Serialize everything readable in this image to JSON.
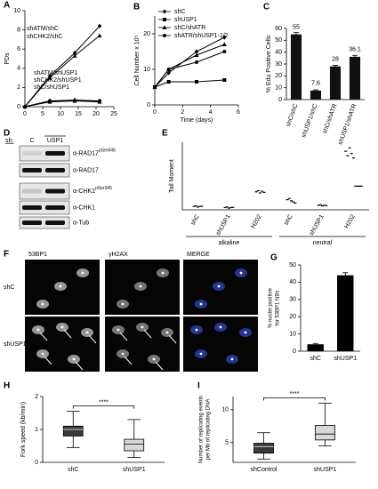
{
  "chart_data": [
    {
      "type": "line",
      "label": "A",
      "ylabel": "PDs",
      "x": [
        0,
        7,
        14,
        21
      ],
      "xlim": [
        0,
        25
      ],
      "xticks": [
        0,
        5,
        10,
        15,
        20,
        25
      ],
      "ylim": [
        0,
        10
      ],
      "yticks": [
        0,
        2,
        4,
        6,
        8,
        10
      ],
      "legend": "inline",
      "series": [
        {
          "name": "shATM/shC",
          "color": "#000000",
          "marker": "diamond",
          "values": [
            0,
            3.2,
            5.6,
            8.4
          ]
        },
        {
          "name": "shCHK2/shC",
          "color": "#000000",
          "marker": "triangle",
          "values": [
            0,
            3.0,
            5.3,
            7.4
          ]
        },
        {
          "name": "shATM/shUSP1",
          "color": "#000000",
          "marker": "diamond",
          "values": [
            0,
            0.6,
            0.7,
            0.6
          ]
        },
        {
          "name": "shCHK2/shUSP1",
          "color": "#000000",
          "marker": "triangle",
          "values": [
            0,
            0.5,
            0.6,
            0.5
          ]
        },
        {
          "name": "shC/shUSP1",
          "color": "#000000",
          "marker": "circle",
          "values": [
            0,
            0.6,
            0.6,
            0.6
          ]
        }
      ]
    },
    {
      "type": "line",
      "label": "B",
      "ylabel": "Cell Number x 10⁵",
      "xlabel": "Time (days)",
      "x": [
        0,
        1,
        3,
        5
      ],
      "xlim": [
        0,
        6
      ],
      "xticks": [
        0,
        2,
        4,
        6
      ],
      "ylim": [
        0,
        25
      ],
      "yticks": [
        0,
        10,
        20
      ],
      "legend": "top-left",
      "series": [
        {
          "name": "shC",
          "color": "#000000",
          "marker": "diamond",
          "values": [
            5,
            9,
            15,
            19
          ]
        },
        {
          "name": "shUSP1",
          "color": "#000000",
          "marker": "square",
          "values": [
            5,
            6.5,
            6.5,
            7
          ]
        },
        {
          "name": "shC/shATR",
          "color": "#000000",
          "marker": "triangle",
          "values": [
            5,
            10,
            14,
            17
          ]
        },
        {
          "name": "shATR/shUSP1-1/2",
          "color": "#000000",
          "marker": "circle",
          "values": [
            5,
            10,
            12,
            15
          ]
        }
      ]
    },
    {
      "type": "bar",
      "label": "C",
      "ylabel": "% Edu Positive Cells",
      "categories": [
        "shC/shC",
        "shUSP1/shC",
        "shC/shATR",
        "shUSP1/shATR"
      ],
      "values": [
        55,
        7.6,
        28,
        36.1
      ],
      "value_labels": [
        "55",
        "7,6",
        "28",
        "36,1"
      ],
      "errors": [
        1.5,
        0.6,
        0.8,
        1.2
      ],
      "color": "#111111",
      "ylim": [
        0,
        60
      ],
      "yticks": [
        0,
        10,
        20,
        30,
        40,
        50,
        60
      ]
    },
    {
      "type": "strip",
      "label": "E",
      "ylabel": "Tail Moment",
      "ylim": [
        0,
        60
      ],
      "color": "#000000",
      "groups": [
        {
          "name": "alkaline",
          "categories": [
            "shC",
            "shUSP1",
            "H202"
          ],
          "values": [
            [
              3,
              3.5,
              2.5,
              3,
              3.2
            ],
            [
              2,
              2.5,
              1.5,
              2,
              2.2
            ],
            [
              16,
              17,
              15,
              16.5,
              15.5
            ]
          ]
        },
        {
          "name": "neutral",
          "categories": [
            "shC",
            "shUSP1",
            "H202"
          ],
          "values": [
            [
              9,
              10,
              8,
              7,
              6
            ],
            [
              4,
              4.5,
              3.5,
              4,
              3.8
            ],
            [
              52,
              48,
              55,
              50,
              46,
              21,
              21,
              21,
              21
            ]
          ]
        }
      ]
    },
    {
      "type": "bar",
      "label": "G",
      "ylabel": [
        "% nuclei positive",
        "for 53BP1 NBs"
      ],
      "categories": [
        "shC",
        "shUSP1"
      ],
      "values": [
        4,
        44
      ],
      "errors": [
        0.5,
        1.5
      ],
      "color": "#000000",
      "ylim": [
        0,
        50
      ],
      "yticks": [
        0,
        10,
        20,
        30,
        40,
        50
      ]
    },
    {
      "type": "box",
      "label": "H",
      "ylabel": "Fork speed (kb/min)",
      "categories": [
        "shC",
        "shUSP1"
      ],
      "colors": [
        "#3a3a3a",
        "#d8d8d8"
      ],
      "significance": "****",
      "ylim": [
        0,
        2
      ],
      "yticks": [
        0,
        1,
        2
      ],
      "boxes": [
        {
          "whislo": 0.45,
          "q1": 0.8,
          "med": 1.0,
          "q3": 1.1,
          "whishi": 1.55
        },
        {
          "whislo": 0.15,
          "q1": 0.35,
          "med": 0.55,
          "q3": 0.7,
          "whishi": 1.3
        }
      ]
    },
    {
      "type": "box",
      "label": "I",
      "ylabel": [
        "Number of replicating events",
        "per Mb of replicating DNA"
      ],
      "categories": [
        "shControl",
        "shUSP1"
      ],
      "colors": [
        "#3a3a3a",
        "#d8d8d8"
      ],
      "significance": "****",
      "ylim": [
        2,
        12
      ],
      "yticks": [
        5,
        10
      ],
      "boxes": [
        {
          "whislo": 2.5,
          "q1": 3.4,
          "med": 4.4,
          "q3": 4.9,
          "whishi": 6.5
        },
        {
          "whislo": 4.5,
          "q1": 5.4,
          "med": 6.3,
          "q3": 7.6,
          "whishi": 11
        }
      ]
    }
  ],
  "blot": {
    "label": "D",
    "lanes_label": "sh:",
    "lanes": [
      "C",
      "USP1"
    ],
    "rows": [
      {
        "name": "α-RAD17",
        "sup": "pSer645"
      },
      {
        "name": "α-RAD17"
      },
      {
        "name": "α-CHK1",
        "sup": "pSer345"
      },
      {
        "name": "α-CHK1"
      },
      {
        "name": "α-Tub"
      }
    ]
  },
  "microscopy": {
    "label": "F",
    "channels": [
      "53BP1",
      "γH2AX",
      "MERGE"
    ],
    "rows": [
      "shC",
      "shUSP1"
    ]
  }
}
